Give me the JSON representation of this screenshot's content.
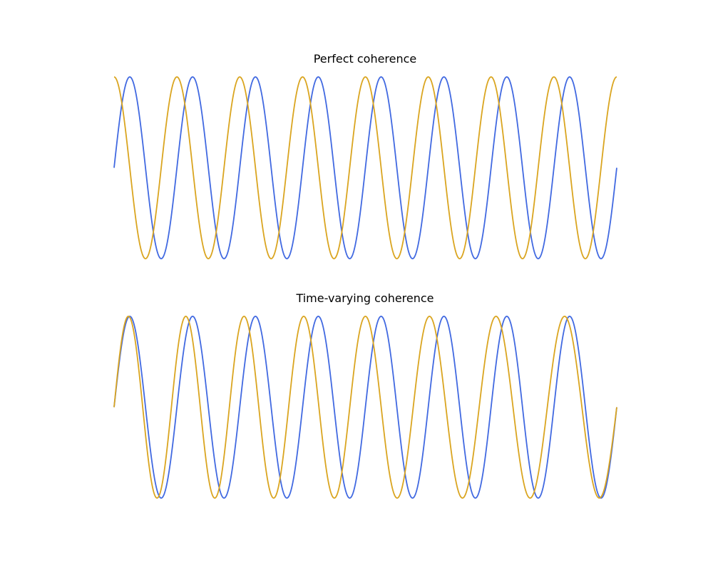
{
  "chart_data": [
    {
      "type": "line",
      "title": "Perfect coherence",
      "xlabel": "",
      "ylabel": "",
      "axes_visible": false,
      "grid": false,
      "legend": "none",
      "xlim": [
        0,
        1
      ],
      "ylim": [
        -1,
        1
      ],
      "series": [
        {
          "color": "#4169e1",
          "function": "sin",
          "cycles": 8,
          "phase_cycles": 0.0
        },
        {
          "color": "#daa520",
          "function": "sin",
          "cycles": 8,
          "phase_cycles": 0.25
        }
      ]
    },
    {
      "type": "line",
      "title": "Time-varying coherence",
      "xlabel": "",
      "ylabel": "",
      "axes_visible": false,
      "grid": false,
      "legend": "none",
      "xlim": [
        0,
        1
      ],
      "ylim": [
        -1,
        1
      ],
      "series": [
        {
          "color": "#4169e1",
          "function": "sin",
          "cycles": 8,
          "phase_cycles": 0.0
        },
        {
          "color": "#daa520",
          "function": "sin",
          "cycles": 8,
          "phase_cycles": 0.0,
          "phase_drift_cycles": 0.25,
          "drift": "sin_half_period"
        }
      ]
    }
  ]
}
